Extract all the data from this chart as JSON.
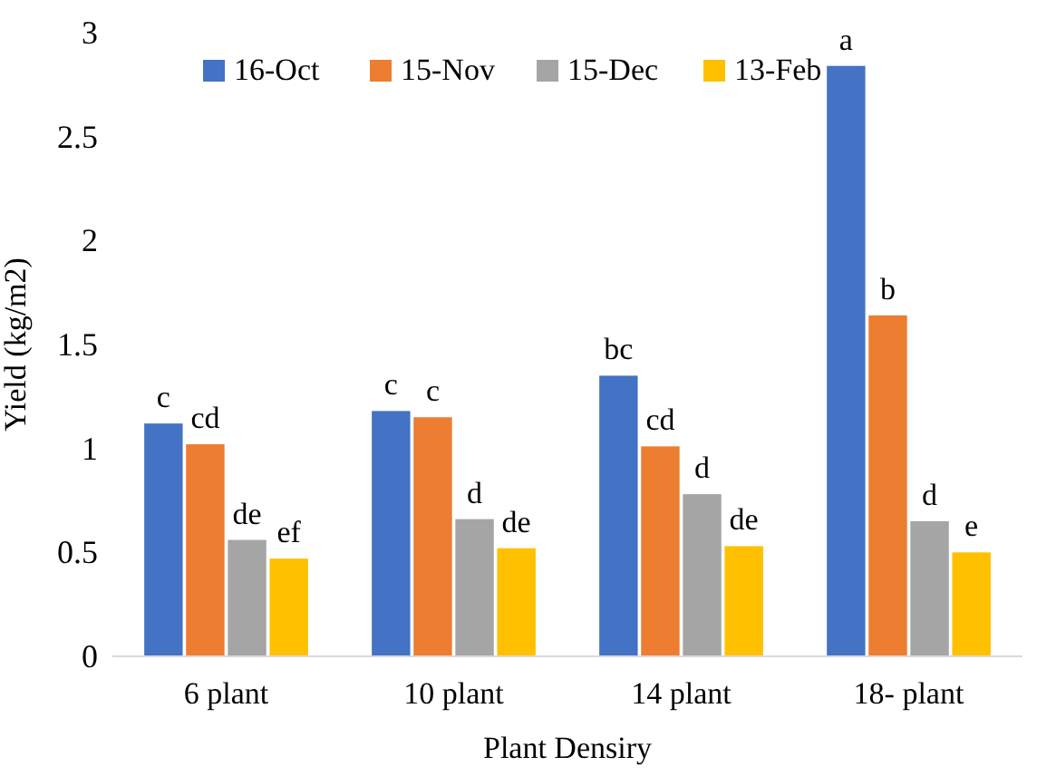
{
  "chart_data": {
    "type": "bar",
    "xlabel": "Plant Densiry",
    "ylabel": "Yield (kg/m2)",
    "categories": [
      "6 plant",
      "10 plant",
      "14 plant",
      "18- plant"
    ],
    "series": [
      {
        "name": "16-Oct",
        "color": "#4472c4",
        "values": [
          1.12,
          1.18,
          1.35,
          2.84
        ],
        "value_labels": [
          "c",
          "c",
          "bc",
          "a"
        ]
      },
      {
        "name": "15-Nov",
        "color": "#ed7d31",
        "values": [
          1.02,
          1.15,
          1.01,
          1.64
        ],
        "value_labels": [
          "cd",
          "c",
          "cd",
          "b"
        ]
      },
      {
        "name": "15-Dec",
        "color": "#a5a5a5",
        "values": [
          0.56,
          0.66,
          0.78,
          0.65
        ],
        "value_labels": [
          "de",
          "d",
          "d",
          "d"
        ]
      },
      {
        "name": "13-Feb",
        "color": "#ffc000",
        "values": [
          0.47,
          0.52,
          0.53,
          0.5
        ],
        "value_labels": [
          "ef",
          "de",
          "de",
          "e"
        ]
      }
    ],
    "ylim": [
      0,
      3
    ],
    "yticks": [
      0,
      0.5,
      1,
      1.5,
      2,
      2.5,
      3
    ],
    "grid": false,
    "legend": "top"
  }
}
